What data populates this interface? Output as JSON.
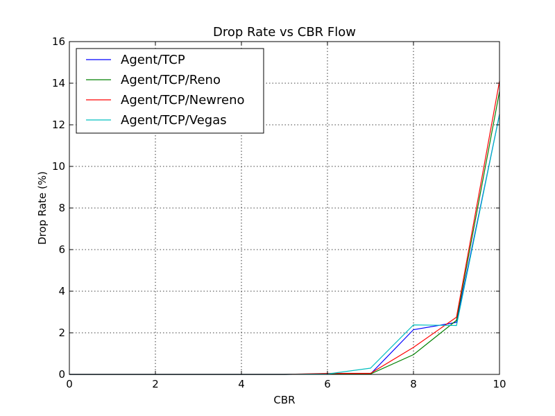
{
  "chart_data": {
    "type": "line",
    "title": "Drop Rate vs CBR Flow",
    "xlabel": "CBR",
    "ylabel": "Drop Rate (%)",
    "xlim": [
      0,
      10
    ],
    "ylim": [
      0,
      16
    ],
    "xticks": [
      "0",
      "2",
      "4",
      "6",
      "8",
      "10"
    ],
    "yticks": [
      "0",
      "2",
      "4",
      "6",
      "8",
      "10",
      "12",
      "14",
      "16"
    ],
    "grid": true,
    "legend_position": "top-left",
    "x": [
      0,
      1,
      2,
      3,
      4,
      5,
      6,
      7,
      8,
      9,
      10
    ],
    "series": [
      {
        "name": "Agent/TCP",
        "color": "#0000ff",
        "values": [
          0,
          0,
          0,
          0,
          0,
          0,
          0.02,
          0.02,
          2.15,
          2.5,
          12.5
        ]
      },
      {
        "name": "Agent/TCP/Reno",
        "color": "#008000",
        "values": [
          0,
          0,
          0,
          0,
          0,
          0,
          0.03,
          0.02,
          0.95,
          2.6,
          13.6
        ]
      },
      {
        "name": "Agent/TCP/Newreno",
        "color": "#ff0000",
        "values": [
          0,
          0,
          0,
          0,
          0,
          0,
          0.05,
          0.05,
          1.3,
          2.75,
          14.1
        ]
      },
      {
        "name": "Agent/TCP/Vegas",
        "color": "#00bfbf",
        "values": [
          0,
          0,
          0,
          0,
          0,
          0,
          0.02,
          0.3,
          2.38,
          2.35,
          12.5
        ]
      }
    ]
  }
}
